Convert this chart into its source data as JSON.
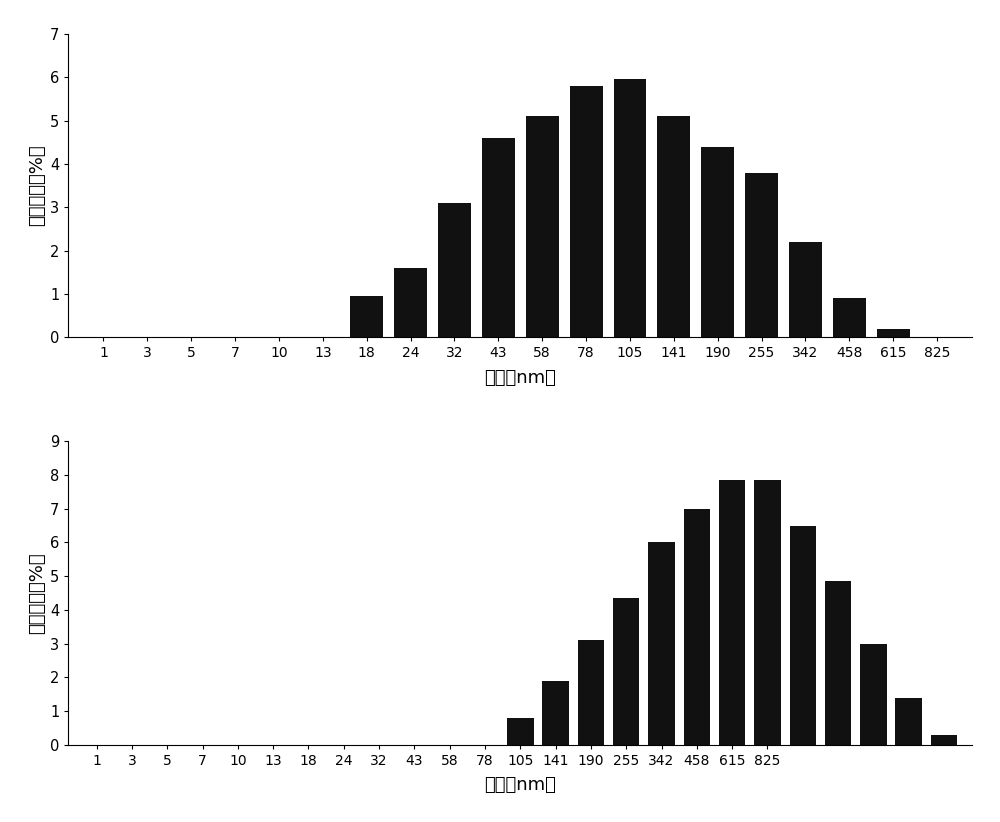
{
  "tick_labels": [
    "1",
    "3",
    "5",
    "7",
    "10",
    "13",
    "18",
    "24",
    "32",
    "43",
    "58",
    "78",
    "105",
    "141",
    "190",
    "255",
    "342",
    "458",
    "615",
    "825"
  ],
  "chart1_values": [
    0,
    0,
    0,
    0,
    0,
    0,
    0,
    0.95,
    1.6,
    3.1,
    4.6,
    5.1,
    5.8,
    5.95,
    5.1,
    4.4,
    3.8,
    2.2,
    0.9,
    0.2
  ],
  "chart2_values": [
    0,
    0,
    0,
    0,
    0,
    0,
    0,
    0,
    0,
    0,
    0,
    0,
    0.8,
    1.9,
    3.1,
    4.35,
    6.0,
    7.0,
    7.85,
    7.85
  ],
  "chart1_extra": [
    1.6,
    0.9,
    0.2
  ],
  "chart2_extra": [
    6.5,
    4.85,
    3.0,
    1.4,
    0.3
  ],
  "chart1_ylim": [
    0,
    7
  ],
  "chart1_yticks": [
    0,
    1,
    2,
    3,
    4,
    5,
    6,
    7
  ],
  "chart2_ylim": [
    0,
    9
  ],
  "chart2_yticks": [
    0,
    1,
    2,
    3,
    4,
    5,
    6,
    7,
    8,
    9
  ],
  "ylabel": "信号强度（%）",
  "xlabel": "尺寸（nm）",
  "bar_color": "#111111",
  "bg_color": "#ffffff"
}
